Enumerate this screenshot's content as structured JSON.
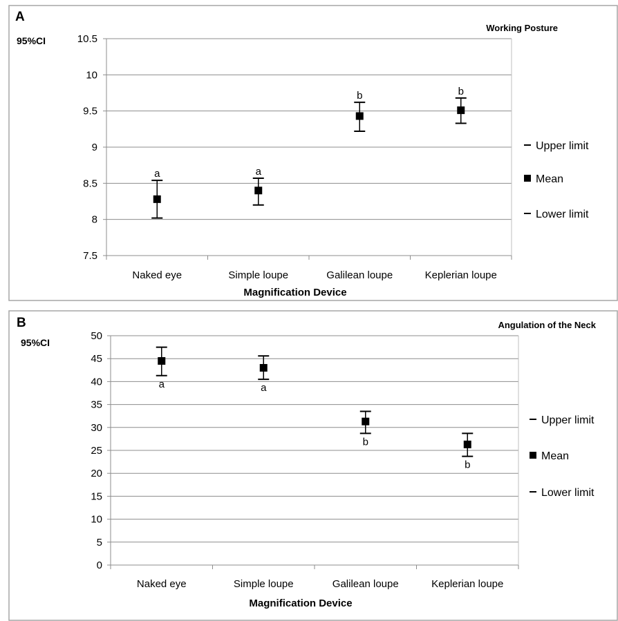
{
  "chart_data": [
    {
      "type": "scatter",
      "panel": "A",
      "title": "Working Posture",
      "ylabel": "95%CI",
      "xlabel": "Magnification Device",
      "ylim": [
        7.5,
        10.5
      ],
      "yticks": [
        "7.5",
        "8",
        "8.5",
        "9",
        "9.5",
        "10",
        "10.5"
      ],
      "categories": [
        "Naked eye",
        "Simple loupe",
        "Galilean loupe",
        "Keplerian loupe"
      ],
      "series": [
        {
          "name": "Upper limit",
          "values": [
            8.54,
            8.57,
            9.62,
            9.68
          ]
        },
        {
          "name": "Mean",
          "values": [
            8.28,
            8.4,
            9.43,
            9.51
          ]
        },
        {
          "name": "Lower limit",
          "values": [
            8.02,
            8.2,
            9.22,
            9.33
          ]
        }
      ],
      "annotations": [
        "a",
        "a",
        "b",
        "b"
      ],
      "grid": true,
      "legend": "right"
    },
    {
      "type": "scatter",
      "panel": "B",
      "title": "Angulation of the Neck",
      "ylabel": "95%CI",
      "xlabel": "Magnification Device",
      "ylim": [
        0,
        50
      ],
      "yticks": [
        "0",
        "5",
        "10",
        "15",
        "20",
        "25",
        "30",
        "35",
        "40",
        "45",
        "50"
      ],
      "categories": [
        "Naked eye",
        "Simple loupe",
        "Galilean loupe",
        "Keplerian loupe"
      ],
      "series": [
        {
          "name": "Upper limit",
          "values": [
            47.5,
            45.6,
            33.5,
            28.7
          ]
        },
        {
          "name": "Mean",
          "values": [
            44.5,
            43.0,
            31.3,
            26.3
          ]
        },
        {
          "name": "Lower limit",
          "values": [
            41.3,
            40.5,
            28.7,
            23.7
          ]
        }
      ],
      "annotations": [
        "a",
        "a",
        "b",
        "b"
      ],
      "grid": true,
      "legend": "right"
    }
  ]
}
